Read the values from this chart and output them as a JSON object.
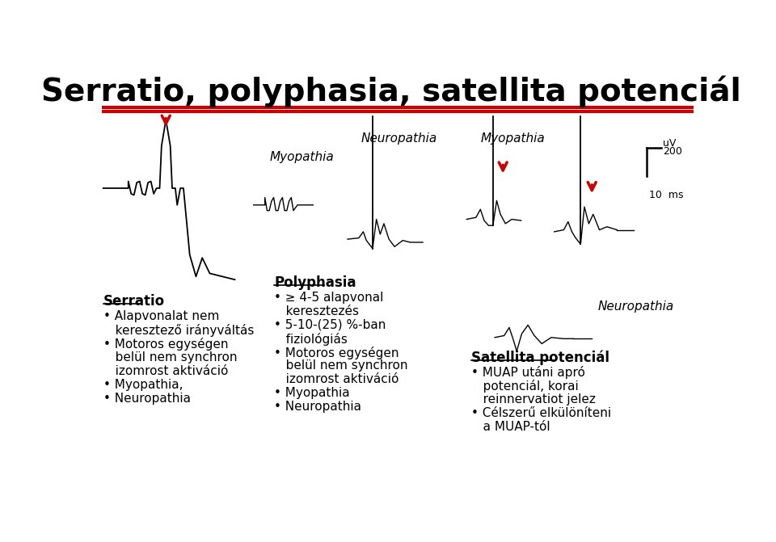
{
  "title": "Serratio, polyphasia, satellita potenciál",
  "title_fontsize": 28,
  "title_fontweight": "bold",
  "bg_color": "#ffffff",
  "red_line_color": "#cc0000",
  "arrow_color": "#cc0000",
  "text_color": "#000000",
  "serratio_header": "Serratio",
  "serratio_bullets": [
    "Alapvonalat nem",
    "keresztező irányváltás",
    "Motoros egységen",
    "belül nem synchron",
    "izomrost aktiváció",
    "Myopathia,",
    "Neuropathia"
  ],
  "serratio_bullet_dots": [
    0,
    2,
    5,
    6
  ],
  "polyphasia_header": "Polyphasia",
  "polyphasia_bullets": [
    "≥ 4-5 alapvonal",
    "keresztezés",
    "5-10-(25) %-ban",
    "fiziológiás",
    "Motoros egységen",
    "belül nem synchron",
    "izomrost aktiváció",
    "Myopathia",
    "Neuropathia"
  ],
  "polyphasia_bullet_dots": [
    0,
    2,
    4,
    7,
    8
  ],
  "satellita_header": "Satellita potenciál",
  "satellita_bullets": [
    "MUAP utáni apró",
    "potenciál, korai",
    "reinnervatiot jelez",
    "Célszerű elkülöníteni",
    "a MUAP-tól"
  ],
  "satellita_bullet_dots": [
    0,
    3
  ],
  "label_myopathia1": "Myopathia",
  "label_neuropathia1": "Neuropathia",
  "label_myopathia2": "Myopathia",
  "label_neuropathia2": "Neuropathia",
  "scale_200uv": "200",
  "scale_uv": "uV",
  "scale_10ms": "10  ms"
}
